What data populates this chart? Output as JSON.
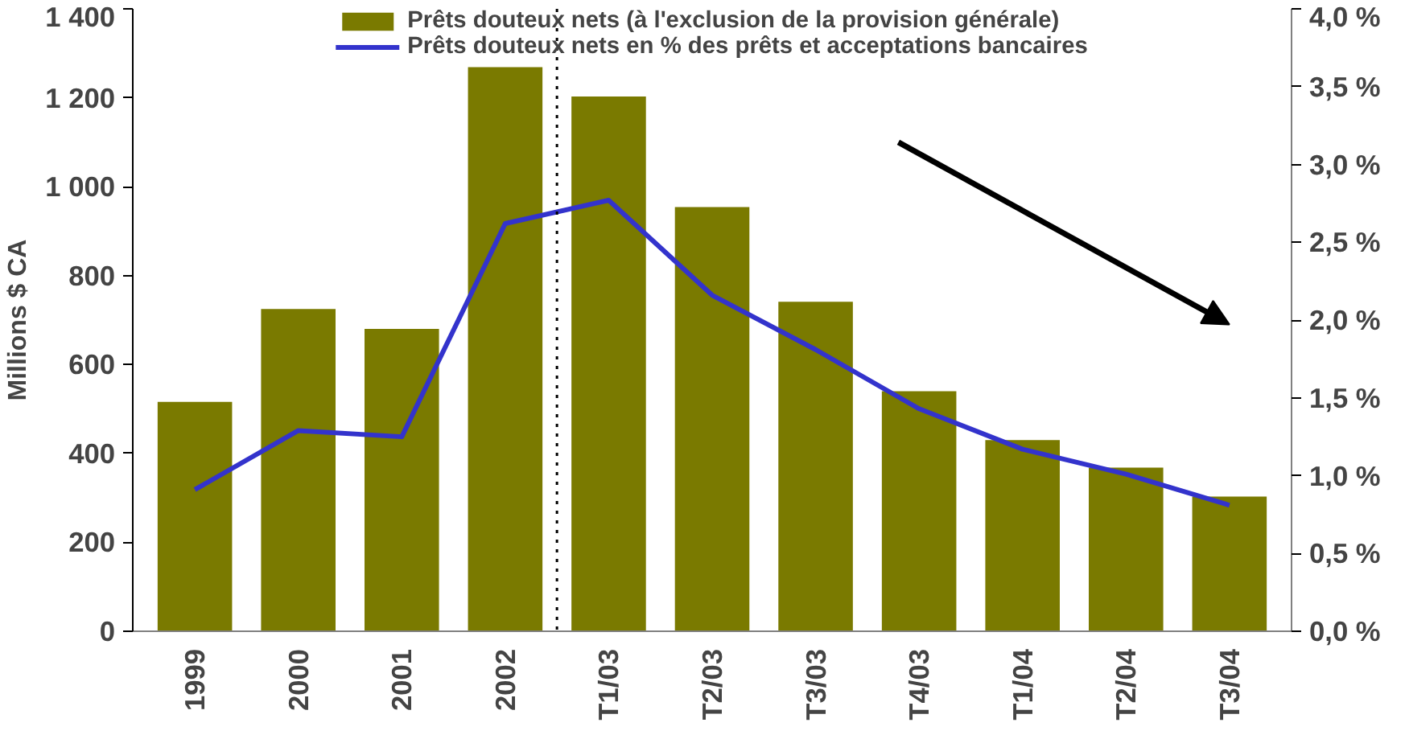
{
  "chart_data": {
    "type": "bar",
    "ylabel": "Millions $ CA",
    "categories": [
      "1999",
      "2000",
      "2001",
      "2002",
      "T1/03",
      "T2/03",
      "T3/03",
      "T4/03",
      "T1/04",
      "T2/04",
      "T3/04"
    ],
    "series": [
      {
        "name": "Prêts douteux nets (à l'exclusion de la provision générale)",
        "color": "#7a7a00",
        "values": [
          516,
          725,
          680,
          1269,
          1203,
          954,
          741,
          540,
          430,
          368,
          303
        ]
      },
      {
        "name": "Prêts douteux nets en % des prêts et acceptations bancaires",
        "type": "line",
        "axis": "y2",
        "color": "#3333cc",
        "values": [
          0.91,
          1.29,
          1.25,
          2.62,
          2.77,
          2.16,
          1.81,
          1.43,
          1.17,
          1.01,
          0.81
        ]
      }
    ],
    "ylim": [
      0,
      1400
    ],
    "yticks": [
      0,
      {
        "value": 200,
        "label": "200"
      },
      {
        "value": 400,
        "label": "400"
      },
      {
        "value": 600,
        "label": "600"
      },
      {
        "value": 800,
        "label": "800"
      },
      {
        "value": 1000,
        "label": "1 000"
      },
      {
        "value": 1200,
        "label": "1 200"
      },
      {
        "value": 1400,
        "label": "1 400"
      }
    ],
    "y2lim": [
      0,
      4
    ],
    "y2ticks": [
      {
        "value": 0,
        "label": "0,0 %"
      },
      {
        "value": 0.5,
        "label": "0,5 %"
      },
      {
        "value": 1,
        "label": "1,0 %"
      },
      {
        "value": 1.5,
        "label": "1,5 %"
      },
      {
        "value": 2,
        "label": "2,0 %"
      },
      {
        "value": 2.5,
        "label": "2,5 %"
      },
      {
        "value": 3,
        "label": "3,0 %"
      },
      {
        "value": 3.5,
        "label": "3,5 %"
      },
      {
        "value": 4,
        "label": "4,0 %"
      }
    ],
    "grid": false,
    "legend": "top",
    "line_style": "solid",
    "marker": "none"
  }
}
